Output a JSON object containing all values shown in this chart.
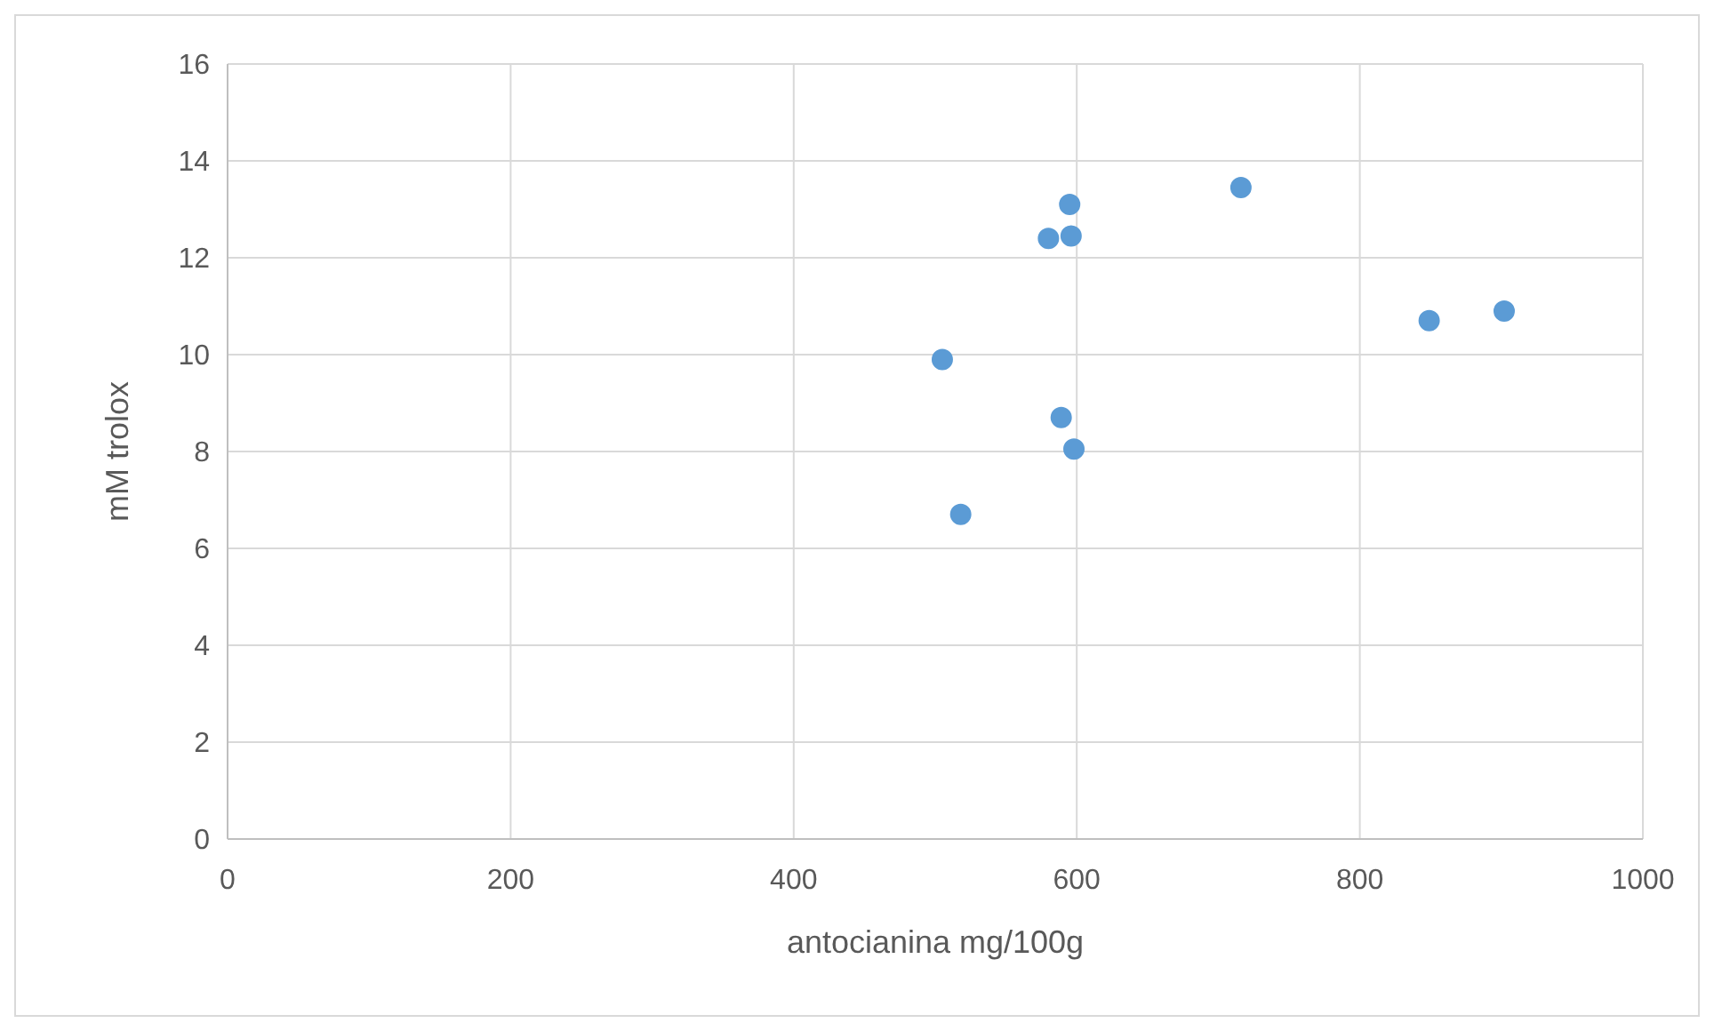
{
  "chart_data": {
    "type": "scatter",
    "xlabel": "antocianina mg/100g",
    "ylabel": "mM trolox",
    "x": [
      505,
      518,
      580,
      595,
      596,
      589,
      598,
      716,
      849,
      902
    ],
    "series": [
      {
        "color": "#5b9bd5",
        "values": [
          9.9,
          6.7,
          12.4,
          13.1,
          12.45,
          8.7,
          8.05,
          13.45,
          10.7,
          10.9
        ]
      }
    ],
    "xlim": [
      0,
      1000
    ],
    "xticks": [
      0,
      200,
      400,
      600,
      800,
      1000
    ],
    "ylim": [
      0,
      16
    ],
    "yticks": [
      0,
      2,
      4,
      6,
      8,
      10,
      12,
      14,
      16
    ],
    "grid": true,
    "marker": "circle"
  }
}
